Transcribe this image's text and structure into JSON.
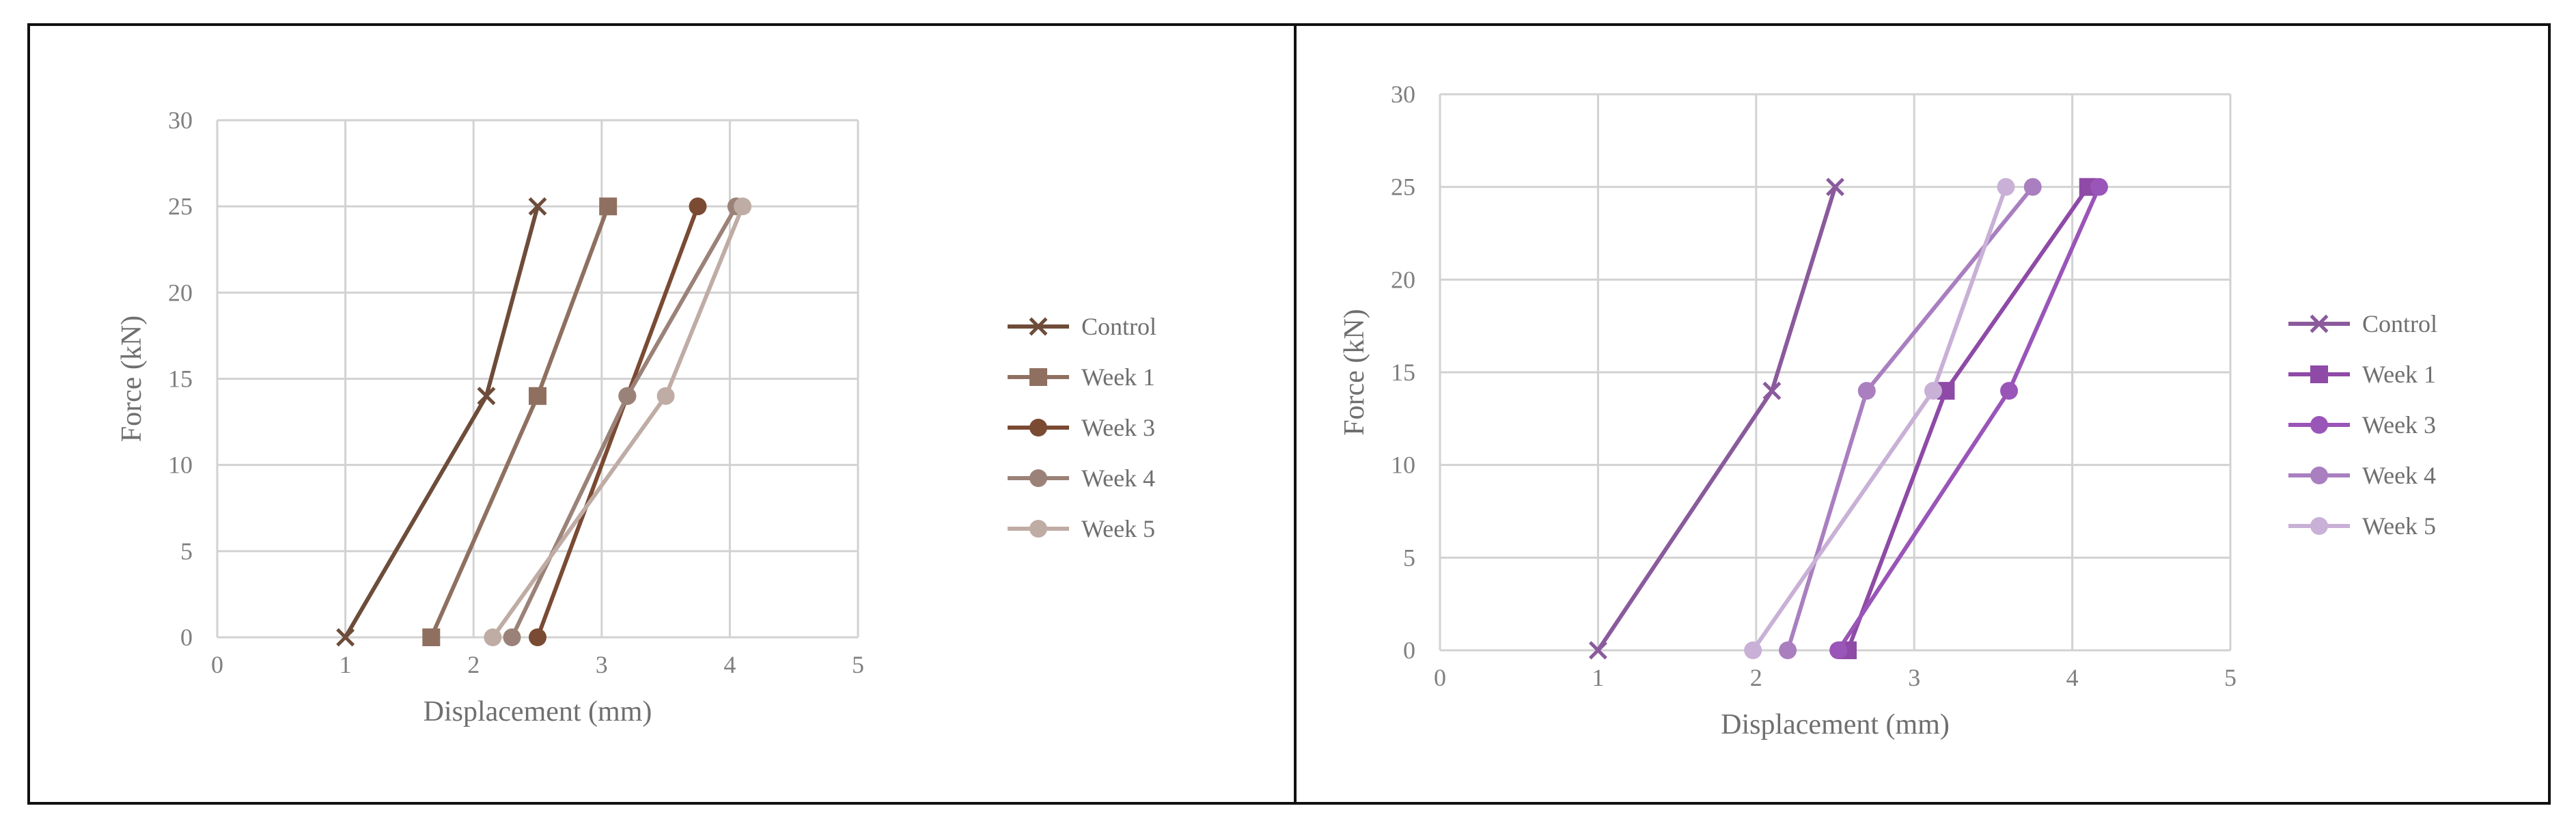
{
  "chart_data": [
    {
      "type": "line",
      "title": "",
      "xlabel": "Displacement  (mm)",
      "ylabel": "Force  (kN)",
      "xlim": [
        0,
        5
      ],
      "ylim": [
        0,
        30
      ],
      "xticks": [
        "0",
        "1",
        "2",
        "3",
        "4",
        "5"
      ],
      "yticks": [
        "0",
        "5",
        "10",
        "15",
        "20",
        "25",
        "30"
      ],
      "grid": true,
      "legend": "right",
      "series": [
        {
          "name": "Control",
          "marker": "x",
          "color": "#6e4c3a",
          "x": [
            1.0,
            2.1,
            2.5
          ],
          "y": [
            0,
            14,
            25
          ]
        },
        {
          "name": "Week 1",
          "marker": "square",
          "color": "#8f7060",
          "x": [
            1.67,
            2.5,
            3.05
          ],
          "y": [
            0,
            14,
            25
          ]
        },
        {
          "name": "Week 3",
          "marker": "circle",
          "color": "#7a4a33",
          "x": [
            2.5,
            3.2,
            3.75
          ],
          "y": [
            0,
            14,
            25
          ]
        },
        {
          "name": "Week 4",
          "marker": "circle",
          "color": "#9b8278",
          "x": [
            2.3,
            3.2,
            4.05
          ],
          "y": [
            0,
            14,
            25
          ]
        },
        {
          "name": "Week 5",
          "marker": "circle",
          "color": "#bfaca5",
          "x": [
            2.15,
            3.5,
            4.1
          ],
          "y": [
            0,
            14,
            25
          ]
        }
      ]
    },
    {
      "type": "line",
      "title": "",
      "xlabel": "Displacement (mm)",
      "ylabel": "Force (kN)",
      "xlim": [
        0,
        5
      ],
      "ylim": [
        0,
        30
      ],
      "xticks": [
        "0",
        "1",
        "2",
        "3",
        "4",
        "5"
      ],
      "yticks": [
        "0",
        "5",
        "10",
        "15",
        "20",
        "25",
        "30"
      ],
      "grid": true,
      "legend": "right",
      "series": [
        {
          "name": "Control",
          "marker": "x",
          "color": "#8a5a9c",
          "x": [
            1.0,
            2.1,
            2.5
          ],
          "y": [
            0,
            14,
            25
          ]
        },
        {
          "name": "Week 1",
          "marker": "square",
          "color": "#8e4aa6",
          "x": [
            2.58,
            3.2,
            4.1
          ],
          "y": [
            0,
            14,
            25
          ]
        },
        {
          "name": "Week 3",
          "marker": "circle",
          "color": "#9a55b8",
          "x": [
            2.52,
            3.6,
            4.17
          ],
          "y": [
            0,
            14,
            25
          ]
        },
        {
          "name": "Week 4",
          "marker": "circle",
          "color": "#a97fc0",
          "x": [
            2.2,
            2.7,
            3.75
          ],
          "y": [
            0,
            14,
            25
          ]
        },
        {
          "name": "Week 5",
          "marker": "circle",
          "color": "#c9b0d6",
          "x": [
            1.98,
            3.12,
            3.58
          ],
          "y": [
            0,
            14,
            25
          ]
        }
      ]
    }
  ]
}
